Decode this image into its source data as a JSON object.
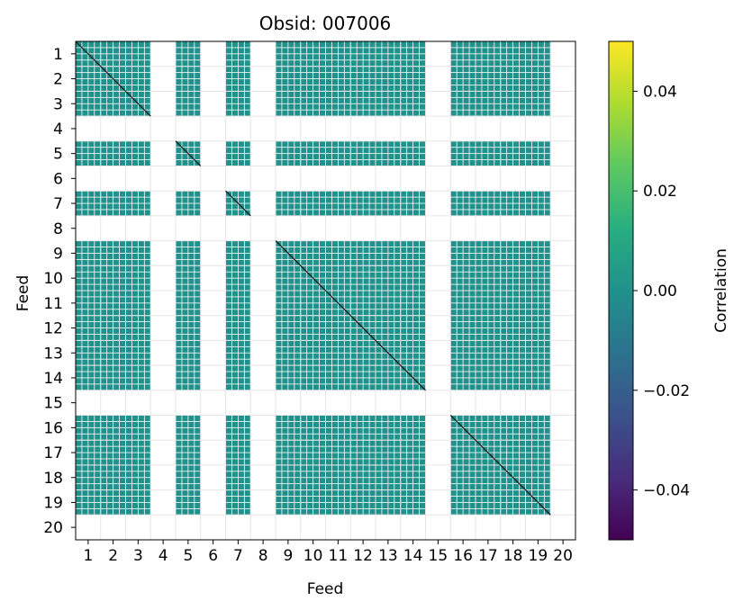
{
  "chart_data": {
    "type": "heatmap",
    "title": "Obsid: 007006",
    "xlabel": "Feed",
    "ylabel": "Feed",
    "x_ticks": [
      "1",
      "2",
      "3",
      "4",
      "5",
      "6",
      "7",
      "8",
      "9",
      "10",
      "11",
      "12",
      "13",
      "14",
      "15",
      "16",
      "17",
      "18",
      "19",
      "20"
    ],
    "y_ticks": [
      "1",
      "2",
      "3",
      "4",
      "5",
      "6",
      "7",
      "8",
      "9",
      "10",
      "11",
      "12",
      "13",
      "14",
      "15",
      "16",
      "17",
      "18",
      "19",
      "20"
    ],
    "colormap": "viridis",
    "colorbar": {
      "label": "Correlation",
      "range": [
        -0.05,
        0.05
      ],
      "ticks": [
        -0.04,
        -0.02,
        0.0,
        0.02,
        0.04
      ],
      "tick_labels": [
        "−0.04",
        "−0.02",
        "0.00",
        "0.02",
        "0.04"
      ]
    },
    "cell_value": 0.0,
    "cell_color": "#21918c",
    "active_feeds": [
      1,
      2,
      3,
      5,
      7,
      9,
      10,
      11,
      12,
      13,
      14,
      16,
      17,
      18,
      19
    ],
    "flagged_feeds": [
      4,
      6,
      8,
      15,
      20
    ],
    "description": "Feed-by-feed correlation blocks; flagged feeds have no data (blank rows/columns)."
  }
}
